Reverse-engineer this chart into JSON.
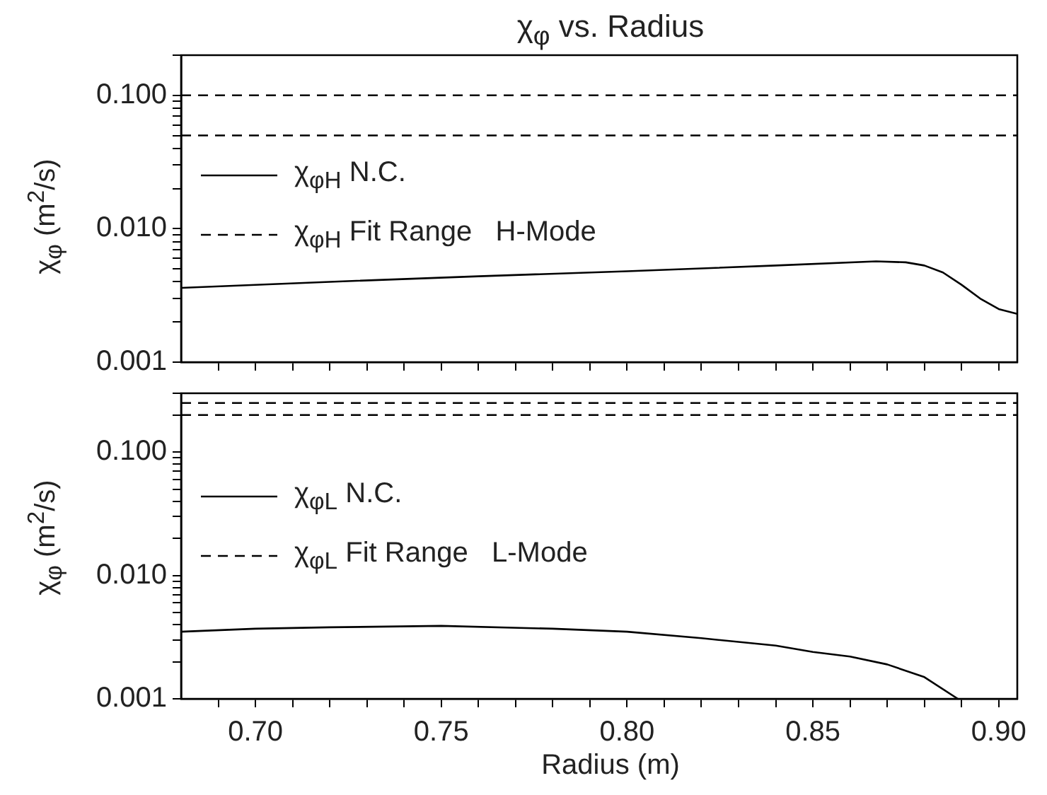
{
  "chart_data": [
    {
      "type": "line",
      "title": "χ$_{φ}$ vs. Radius",
      "ylabel": "χ$_{φ}$ (m$^{2}$/s)",
      "log": true,
      "grid": false,
      "legend": "left",
      "marker": "none",
      "tick_labels": "y",
      "xlim": [
        0.68,
        0.905
      ],
      "ylim": [
        0.001,
        0.2
      ],
      "xticks": [
        {
          "value": 0.69,
          "label": null
        },
        {
          "value": 0.7,
          "label": null
        },
        {
          "value": 0.71,
          "label": null
        },
        {
          "value": 0.72,
          "label": null
        },
        {
          "value": 0.73,
          "label": null
        },
        {
          "value": 0.74,
          "label": null
        },
        {
          "value": 0.75,
          "label": null
        },
        {
          "value": 0.76,
          "label": null
        },
        {
          "value": 0.77,
          "label": null
        },
        {
          "value": 0.78,
          "label": null
        },
        {
          "value": 0.79,
          "label": null
        },
        {
          "value": 0.8,
          "label": null
        },
        {
          "value": 0.81,
          "label": null
        },
        {
          "value": 0.82,
          "label": null
        },
        {
          "value": 0.83,
          "label": null
        },
        {
          "value": 0.84,
          "label": null
        },
        {
          "value": 0.85,
          "label": null
        },
        {
          "value": 0.86,
          "label": null
        },
        {
          "value": 0.87,
          "label": null
        },
        {
          "value": 0.88,
          "label": null
        },
        {
          "value": 0.89,
          "label": null
        },
        {
          "value": 0.9,
          "label": null
        }
      ],
      "yticks": [
        {
          "value": 0.001,
          "label": "0.001"
        },
        {
          "value": 0.002,
          "label": null
        },
        {
          "value": 0.003,
          "label": null
        },
        {
          "value": 0.004,
          "label": null
        },
        {
          "value": 0.005,
          "label": null
        },
        {
          "value": 0.006,
          "label": null
        },
        {
          "value": 0.007,
          "label": null
        },
        {
          "value": 0.008,
          "label": null
        },
        {
          "value": 0.009,
          "label": null
        },
        {
          "value": 0.01,
          "label": "0.010"
        },
        {
          "value": 0.02,
          "label": null
        },
        {
          "value": 0.03,
          "label": null
        },
        {
          "value": 0.04,
          "label": null
        },
        {
          "value": 0.05,
          "label": null
        },
        {
          "value": 0.06,
          "label": null
        },
        {
          "value": 0.07,
          "label": null
        },
        {
          "value": 0.08,
          "label": null
        },
        {
          "value": 0.09,
          "label": null
        },
        {
          "value": 0.1,
          "label": "0.100"
        },
        {
          "value": 0.2,
          "label": null
        }
      ],
      "series": [
        {
          "name": "χ$_{φH}$ N.C.",
          "color": "#000000",
          "line_style": "solid",
          "x": [
            0.68,
            0.72,
            0.76,
            0.8,
            0.84,
            0.867,
            0.875,
            0.88,
            0.885,
            0.89,
            0.895,
            0.9,
            0.905
          ],
          "values": [
            0.0036,
            0.004,
            0.0044,
            0.0048,
            0.0053,
            0.0057,
            0.0056,
            0.0053,
            0.0047,
            0.0038,
            0.003,
            0.0025,
            0.0023
          ]
        },
        {
          "name": "χ$_{φH}$ Fit Range   H-Mode",
          "color": "#000000",
          "line_style": "dashed",
          "x": [
            0.68,
            0.905
          ],
          "values": [
            0.1,
            0.1
          ]
        },
        {
          "color": "#000000",
          "line_style": "dashed",
          "x": [
            0.68,
            0.905
          ],
          "values": [
            0.05,
            0.05
          ]
        }
      ]
    },
    {
      "type": "line",
      "xlabel": "Radius (m)",
      "ylabel": "χ$_{φ}$ (m$^{2}$/s)",
      "log": true,
      "grid": false,
      "legend": "left",
      "marker": "none",
      "xlim": [
        0.68,
        0.905
      ],
      "ylim": [
        0.001,
        0.3
      ],
      "xticks": [
        {
          "value": 0.69,
          "label": null
        },
        {
          "value": 0.7,
          "label": "0.70"
        },
        {
          "value": 0.71,
          "label": null
        },
        {
          "value": 0.72,
          "label": null
        },
        {
          "value": 0.73,
          "label": null
        },
        {
          "value": 0.74,
          "label": null
        },
        {
          "value": 0.75,
          "label": "0.75"
        },
        {
          "value": 0.76,
          "label": null
        },
        {
          "value": 0.77,
          "label": null
        },
        {
          "value": 0.78,
          "label": null
        },
        {
          "value": 0.79,
          "label": null
        },
        {
          "value": 0.8,
          "label": "0.80"
        },
        {
          "value": 0.81,
          "label": null
        },
        {
          "value": 0.82,
          "label": null
        },
        {
          "value": 0.83,
          "label": null
        },
        {
          "value": 0.84,
          "label": null
        },
        {
          "value": 0.85,
          "label": "0.85"
        },
        {
          "value": 0.86,
          "label": null
        },
        {
          "value": 0.87,
          "label": null
        },
        {
          "value": 0.88,
          "label": null
        },
        {
          "value": 0.89,
          "label": null
        },
        {
          "value": 0.9,
          "label": "0.90"
        }
      ],
      "yticks": [
        {
          "value": 0.001,
          "label": "0.001"
        },
        {
          "value": 0.002,
          "label": null
        },
        {
          "value": 0.003,
          "label": null
        },
        {
          "value": 0.004,
          "label": null
        },
        {
          "value": 0.005,
          "label": null
        },
        {
          "value": 0.006,
          "label": null
        },
        {
          "value": 0.007,
          "label": null
        },
        {
          "value": 0.008,
          "label": null
        },
        {
          "value": 0.009,
          "label": null
        },
        {
          "value": 0.01,
          "label": "0.010"
        },
        {
          "value": 0.02,
          "label": null
        },
        {
          "value": 0.03,
          "label": null
        },
        {
          "value": 0.04,
          "label": null
        },
        {
          "value": 0.05,
          "label": null
        },
        {
          "value": 0.06,
          "label": null
        },
        {
          "value": 0.07,
          "label": null
        },
        {
          "value": 0.08,
          "label": null
        },
        {
          "value": 0.09,
          "label": null
        },
        {
          "value": 0.1,
          "label": "0.100"
        },
        {
          "value": 0.2,
          "label": null
        },
        {
          "value": 0.3,
          "label": null
        }
      ],
      "series": [
        {
          "name": "χ$_{φL}$ N.C.",
          "color": "#000000",
          "line_style": "solid",
          "x": [
            0.68,
            0.7,
            0.72,
            0.75,
            0.78,
            0.8,
            0.82,
            0.84,
            0.85,
            0.86,
            0.87,
            0.88,
            0.889
          ],
          "values": [
            0.0035,
            0.0037,
            0.0038,
            0.0039,
            0.0037,
            0.0035,
            0.0031,
            0.0027,
            0.0024,
            0.0022,
            0.0019,
            0.0015,
            0.001
          ]
        },
        {
          "name": "χ$_{φL}$ Fit Range   L-Mode",
          "color": "#000000",
          "line_style": "dashed",
          "x": [
            0.68,
            0.905
          ],
          "values": [
            0.25,
            0.25
          ]
        },
        {
          "color": "#000000",
          "line_style": "dashed",
          "x": [
            0.68,
            0.905
          ],
          "values": [
            0.2,
            0.2
          ]
        }
      ]
    }
  ]
}
